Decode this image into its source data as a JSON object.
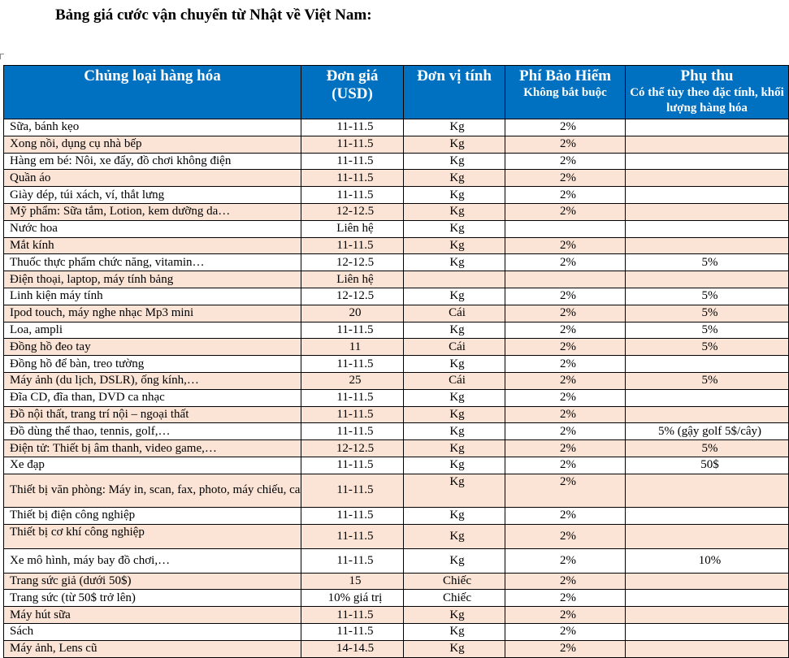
{
  "title": "Bảng giá cước vận chuyển từ Nhật về Việt Nam:",
  "colors": {
    "header_bg": "#0070c0",
    "stripe": "#fbe4d5"
  },
  "headers": {
    "category": "Chủng loại hàng hóa",
    "price_1": "Đơn giá",
    "price_2": "(USD)",
    "unit": "Đơn vị tính",
    "insurance_1": "Phí Bảo Hiểm",
    "insurance_2": "Không bắt buộc",
    "surcharge_1": "Phụ thu",
    "surcharge_2": "Có thể tùy theo đặc tính, khối lượng hàng hóa"
  },
  "rows": [
    {
      "name": "Sữa, bánh kẹo",
      "price": "11-11.5",
      "unit": "Kg",
      "insurance": "2%",
      "surcharge": ""
    },
    {
      "name": "Xong nồi, dụng cụ nhà bếp",
      "price": "11-11.5",
      "unit": "Kg",
      "insurance": "2%",
      "surcharge": ""
    },
    {
      "name": "Hàng em bé: Nôi, xe đẩy, đồ chơi không điện",
      "price": "11-11.5",
      "unit": "Kg",
      "insurance": "2%",
      "surcharge": ""
    },
    {
      "name": "Quần áo",
      "price": "11-11.5",
      "unit": "Kg",
      "insurance": "2%",
      "surcharge": ""
    },
    {
      "name": "Giày dép, túi xách, ví, thắt lưng",
      "price": "11-11.5",
      "unit": "Kg",
      "insurance": "2%",
      "surcharge": ""
    },
    {
      "name": "Mỹ phẩm: Sữa tắm, Lotion, kem dưỡng da…",
      "price": "12-12.5",
      "unit": "Kg",
      "insurance": "2%",
      "surcharge": ""
    },
    {
      "name": "Nước hoa",
      "price": "Liên hệ",
      "unit": "Kg",
      "insurance": "",
      "surcharge": ""
    },
    {
      "name": "Mắt kính",
      "price": "11-11.5",
      "unit": "Kg",
      "insurance": "2%",
      "surcharge": ""
    },
    {
      "name": "Thuốc thực phẩm chức năng, vitamin…",
      "price": "12-12.5",
      "unit": "Kg",
      "insurance": "2%",
      "surcharge": "5%"
    },
    {
      "name": "Điện thoại, laptop, máy tính bảng",
      "price": "Liên hệ",
      "unit": "",
      "insurance": "",
      "surcharge": ""
    },
    {
      "name": "Linh kiện máy tính",
      "price": "12-12.5",
      "unit": "Kg",
      "insurance": "2%",
      "surcharge": "5%"
    },
    {
      "name": "Ipod touch, máy nghe nhạc Mp3 mini",
      "price": "20",
      "unit": "Cái",
      "insurance": "2%",
      "surcharge": "5%"
    },
    {
      "name": "Loa, ampli",
      "price": "11-11.5",
      "unit": "Kg",
      "insurance": "2%",
      "surcharge": "5%"
    },
    {
      "name": "Đồng hồ đeo tay",
      "price": "11",
      "unit": "Cái",
      "insurance": "2%",
      "surcharge": "5%"
    },
    {
      "name": "Đồng hồ để bàn, treo tường",
      "price": "11-11.5",
      "unit": "Kg",
      "insurance": "2%",
      "surcharge": ""
    },
    {
      "name": "Máy ảnh (du lịch, DSLR), ống kính,…",
      "price": "25",
      "unit": "Cái",
      "insurance": "2%",
      "surcharge": "5%"
    },
    {
      "name": "Đĩa CD, đĩa than, DVD ca nhạc",
      "price": "11-11.5",
      "unit": "Kg",
      "insurance": "2%",
      "surcharge": ""
    },
    {
      "name": "Đồ nội thất, trang trí nội – ngoại thất",
      "price": "11-11.5",
      "unit": "Kg",
      "insurance": "2%",
      "surcharge": ""
    },
    {
      "name": "Đồ dùng thể thao, tennis, golf,…",
      "price": "11-11.5",
      "unit": "Kg",
      "insurance": "2%",
      "surcharge": "5% (gậy golf 5$/cây)"
    },
    {
      "name": "Điện tử: Thiết bị âm thanh, video game,…",
      "price": "12-12.5",
      "unit": "Kg",
      "insurance": "2%",
      "surcharge": "5%"
    },
    {
      "name": "Xe đạp",
      "price": "11-11.5",
      "unit": "Kg",
      "insurance": "2%",
      "surcharge": "50$"
    },
    {
      "name": "Thiết bị văn phòng: Máy in, scan, fax, photo, máy chiếu, camera, chống trộm, chấm công,…",
      "price": "11-11.5",
      "unit": "Kg",
      "insurance": "2%",
      "surcharge": ""
    },
    {
      "name": "Thiết bị điện công nghiệp",
      "price": "11-11.5",
      "unit": "Kg",
      "insurance": "2%",
      "surcharge": ""
    },
    {
      "name": "Thiết bị cơ khí công nghiệp",
      "price": "11-11.5",
      "unit": "Kg",
      "insurance": "2%",
      "surcharge": ""
    },
    {
      "name": "Xe mô hình, máy bay đồ chơi,…",
      "price": "11-11.5",
      "unit": "Kg",
      "insurance": "2%",
      "surcharge": "10%"
    },
    {
      "name": "Trang sức giả (dưới 50$)",
      "price": "15",
      "unit": "Chiếc",
      "insurance": "2%",
      "surcharge": ""
    },
    {
      "name": "Trang sức (từ 50$ trở lên)",
      "price": "10% giá trị",
      "unit": "Chiếc",
      "insurance": "2%",
      "surcharge": ""
    },
    {
      "name": "Máy hút sữa",
      "price": "11-11.5",
      "unit": "Kg",
      "insurance": "2%",
      "surcharge": ""
    },
    {
      "name": "Sách",
      "price": "11-11.5",
      "unit": "Kg",
      "insurance": "2%",
      "surcharge": ""
    },
    {
      "name": "Máy ảnh, Lens cũ",
      "price": "14-14.5",
      "unit": "Kg",
      "insurance": "2%",
      "surcharge": ""
    }
  ]
}
